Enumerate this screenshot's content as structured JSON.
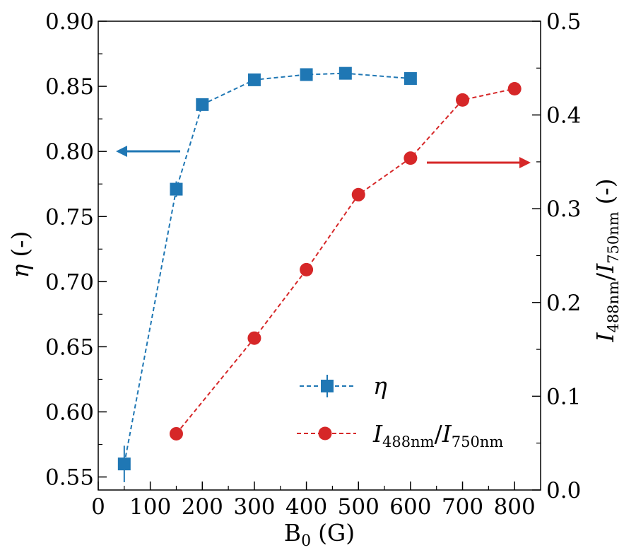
{
  "chart_data": {
    "type": "line",
    "x_axis": {
      "label_base": "B",
      "label_sub": "0",
      "label_unit": "(G)",
      "range": [
        0,
        850
      ],
      "ticks": [
        0,
        100,
        200,
        300,
        400,
        500,
        600,
        700,
        800
      ],
      "tick_labels": [
        "0",
        "100",
        "200",
        "300",
        "400",
        "500",
        "600",
        "700",
        "800"
      ]
    },
    "y_left": {
      "label_symbol": "η",
      "label_unit": "(-)",
      "range": [
        0.54,
        0.9
      ],
      "ticks": [
        0.55,
        0.6,
        0.65,
        0.7,
        0.75,
        0.8,
        0.85,
        0.9
      ],
      "tick_labels": [
        "0.55",
        "0.60",
        "0.65",
        "0.70",
        "0.75",
        "0.80",
        "0.85",
        "0.90"
      ]
    },
    "y_right": {
      "label_I": "I",
      "label_sub1": "488nm",
      "label_slash": "/",
      "label_sub2": "750nm",
      "label_unit": "(-)",
      "range": [
        0.0,
        0.5
      ],
      "ticks": [
        0.0,
        0.1,
        0.2,
        0.3,
        0.4,
        0.5
      ],
      "tick_labels": [
        "0.0",
        "0.1",
        "0.2",
        "0.3",
        "0.4",
        "0.5"
      ]
    },
    "series": [
      {
        "name": "η",
        "axis": "left",
        "color": "#1f77b4",
        "marker": "square",
        "x": [
          50,
          150,
          200,
          300,
          400,
          475,
          600
        ],
        "y": [
          0.56,
          0.771,
          0.836,
          0.855,
          0.859,
          0.86,
          0.856
        ],
        "yerr": [
          0.014,
          0.006,
          0.004,
          0.004,
          0.003,
          0.003,
          0.003
        ]
      },
      {
        "name": "I488nm/I750nm",
        "axis": "right",
        "color": "#d62728",
        "marker": "circle",
        "x": [
          150,
          300,
          400,
          500,
          600,
          700,
          800
        ],
        "y": [
          0.06,
          0.162,
          0.235,
          0.315,
          0.354,
          0.416,
          0.428
        ]
      }
    ],
    "annotations": [
      {
        "type": "arrow",
        "direction": "left",
        "color": "#1f77b4",
        "meaning": "η uses left axis"
      },
      {
        "type": "arrow",
        "direction": "right",
        "color": "#d62728",
        "meaning": "intensity ratio uses right axis"
      }
    ],
    "legend": {
      "placement": "lower-right",
      "entries": [
        {
          "label": "η",
          "series": 0
        },
        {
          "label_I": "I",
          "label_sub1": "488nm",
          "label_slash": "/",
          "label_sub2": "750nm",
          "series": 1
        }
      ]
    }
  }
}
